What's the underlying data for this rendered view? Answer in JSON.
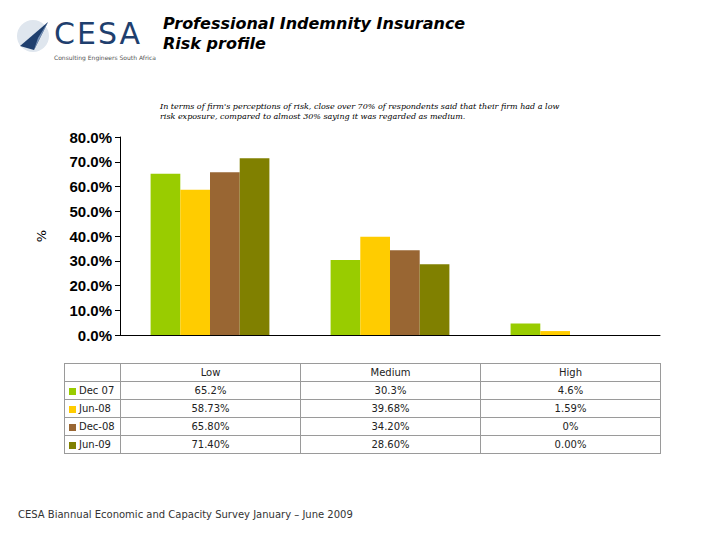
{
  "header": {
    "logo": "CESA",
    "tagline": "Consulting Engineers South Africa"
  },
  "chart_data": {
    "type": "bar",
    "title": "Professional Indemnity Insurance\nRisk profile",
    "annotation": "In terms of firm's perceptions of risk, close over 70% of respondents said that their firm had a low risk exposure, compared to almost 30% saying it was regarded as medium.",
    "ylabel": "%",
    "categories": [
      "Low",
      "Medium",
      "High"
    ],
    "series": [
      {
        "name": "Dec 07",
        "color": "#99cc00",
        "values": [
          65.2,
          30.3,
          4.6
        ],
        "value_labels": [
          "65.2%",
          "30.3%",
          "4.6%"
        ]
      },
      {
        "name": "Jun-08",
        "color": "#ffcc00",
        "values": [
          58.73,
          39.68,
          1.59
        ],
        "value_labels": [
          "58.73%",
          "39.68%",
          "1.59%"
        ]
      },
      {
        "name": "Dec-08",
        "color": "#996633",
        "values": [
          65.8,
          34.2,
          0
        ],
        "value_labels": [
          "65.80%",
          "34.20%",
          "0%"
        ]
      },
      {
        "name": "Jun-09",
        "color": "#808000",
        "values": [
          71.4,
          28.6,
          0
        ],
        "value_labels": [
          "71.40%",
          "28.60%",
          "0.00%"
        ]
      }
    ],
    "ylim": [
      0,
      80
    ],
    "yticks": [
      {
        "value": 0,
        "label": "0.0%"
      },
      {
        "value": 10,
        "label": "10.0%"
      },
      {
        "value": 20,
        "label": "20.0%"
      },
      {
        "value": 30,
        "label": "30.0%"
      },
      {
        "value": 40,
        "label": "40.0%"
      },
      {
        "value": 50,
        "label": "50.0%"
      },
      {
        "value": 60,
        "label": "60.0%"
      },
      {
        "value": 70,
        "label": "70.0%"
      },
      {
        "value": 80,
        "label": "80.0%"
      }
    ],
    "grid": false,
    "tick_labels": "y"
  },
  "footer": "CESA Biannual Economic and Capacity Survey January – June 2009"
}
